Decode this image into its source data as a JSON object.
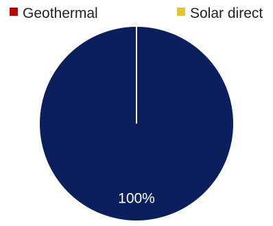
{
  "chart_data": {
    "type": "pie",
    "title": "",
    "legend_position": "top",
    "series": [
      {
        "name": "Geothermal",
        "value": 0,
        "color": "#c00000"
      },
      {
        "name": "Solar direct",
        "value": 0,
        "color": "#e0c82c"
      },
      {
        "name": "",
        "value": 100,
        "color": "#0a1f5c"
      }
    ],
    "data_labels": [
      "",
      "",
      "100%"
    ],
    "separator_color": "#ffffff"
  }
}
